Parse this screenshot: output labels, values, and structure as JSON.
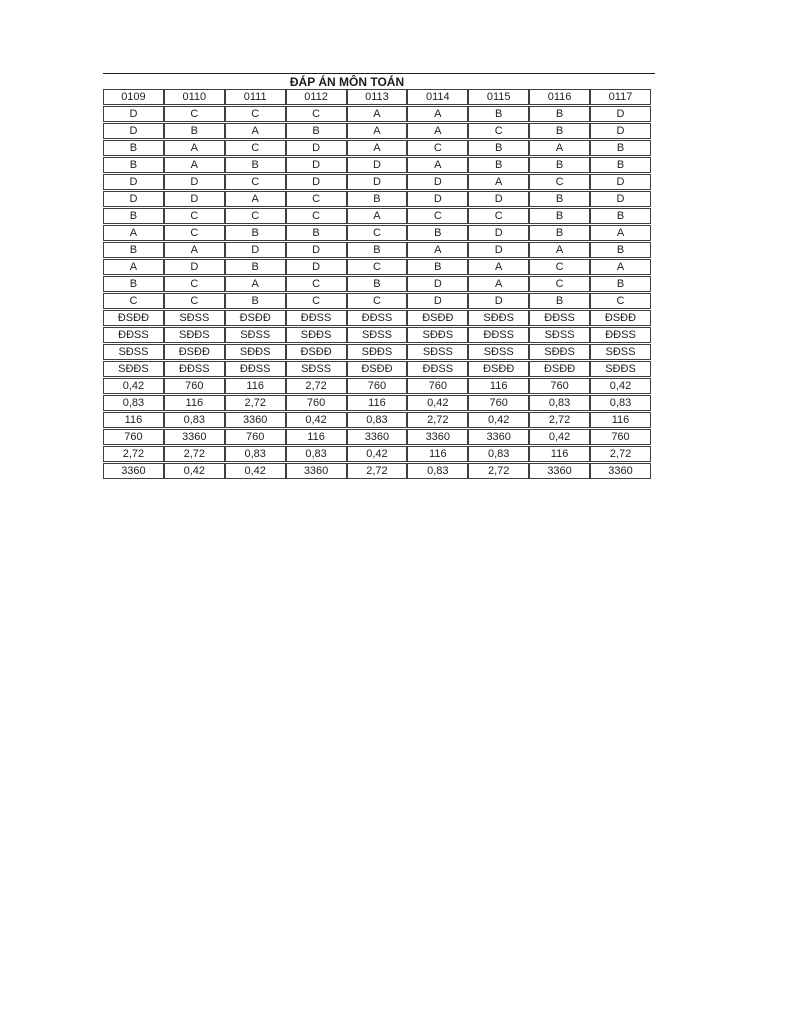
{
  "page": {
    "title": "ĐÁP ÁN MÔN TOÁN"
  },
  "colors": {
    "text": "#1f1f1f",
    "border": "#404040",
    "rule": "#1a1a1a",
    "background": "#ffffff"
  },
  "table": {
    "headers": [
      "0109",
      "0110",
      "0111",
      "0112",
      "0113",
      "0114",
      "0115",
      "0116",
      "0117"
    ],
    "rows": [
      [
        "D",
        "C",
        "C",
        "C",
        "A",
        "A",
        "B",
        "B",
        "D"
      ],
      [
        "D",
        "B",
        "A",
        "B",
        "A",
        "A",
        "C",
        "B",
        "D"
      ],
      [
        "B",
        "A",
        "C",
        "D",
        "A",
        "C",
        "B",
        "A",
        "B"
      ],
      [
        "B",
        "A",
        "B",
        "D",
        "D",
        "A",
        "B",
        "B",
        "B"
      ],
      [
        "D",
        "D",
        "C",
        "D",
        "D",
        "D",
        "A",
        "C",
        "D"
      ],
      [
        "D",
        "D",
        "A",
        "C",
        "B",
        "D",
        "D",
        "B",
        "D"
      ],
      [
        "B",
        "C",
        "C",
        "C",
        "A",
        "C",
        "C",
        "B",
        "B"
      ],
      [
        "A",
        "C",
        "B",
        "B",
        "C",
        "B",
        "D",
        "B",
        "A"
      ],
      [
        "B",
        "A",
        "D",
        "D",
        "B",
        "A",
        "D",
        "A",
        "B"
      ],
      [
        "A",
        "D",
        "B",
        "D",
        "C",
        "B",
        "A",
        "C",
        "A"
      ],
      [
        "B",
        "C",
        "A",
        "C",
        "B",
        "D",
        "A",
        "C",
        "B"
      ],
      [
        "C",
        "C",
        "B",
        "C",
        "C",
        "D",
        "D",
        "B",
        "C"
      ],
      [
        "ĐSĐĐ",
        "SĐSS",
        "ĐSĐĐ",
        "ĐĐSS",
        "ĐĐSS",
        "ĐSĐĐ",
        "SĐĐS",
        "ĐĐSS",
        "ĐSĐĐ"
      ],
      [
        "ĐĐSS",
        "SĐĐS",
        "SĐSS",
        "SĐĐS",
        "SĐSS",
        "SĐĐS",
        "ĐĐSS",
        "SĐSS",
        "ĐĐSS"
      ],
      [
        "SĐSS",
        "ĐSĐĐ",
        "SĐĐS",
        "ĐSĐĐ",
        "SĐĐS",
        "SĐSS",
        "SĐSS",
        "SĐĐS",
        "SĐSS"
      ],
      [
        "SĐĐS",
        "ĐĐSS",
        "ĐĐSS",
        "SĐSS",
        "ĐSĐĐ",
        "ĐĐSS",
        "ĐSĐĐ",
        "ĐSĐĐ",
        "SĐĐS"
      ],
      [
        "0,42",
        "760",
        "116",
        "2,72",
        "760",
        "760",
        "116",
        "760",
        "0,42"
      ],
      [
        "0,83",
        "116",
        "2,72",
        "760",
        "116",
        "0,42",
        "760",
        "0,83",
        "0,83"
      ],
      [
        "116",
        "0,83",
        "3360",
        "0,42",
        "0,83",
        "2,72",
        "0,42",
        "2,72",
        "116"
      ],
      [
        "760",
        "3360",
        "760",
        "116",
        "3360",
        "3360",
        "3360",
        "0,42",
        "760"
      ],
      [
        "2,72",
        "2,72",
        "0,83",
        "0,83",
        "0,42",
        "116",
        "0,83",
        "116",
        "2,72"
      ],
      [
        "3360",
        "0,42",
        "0,42",
        "3360",
        "2,72",
        "0,83",
        "2,72",
        "3360",
        "3360"
      ]
    ]
  }
}
